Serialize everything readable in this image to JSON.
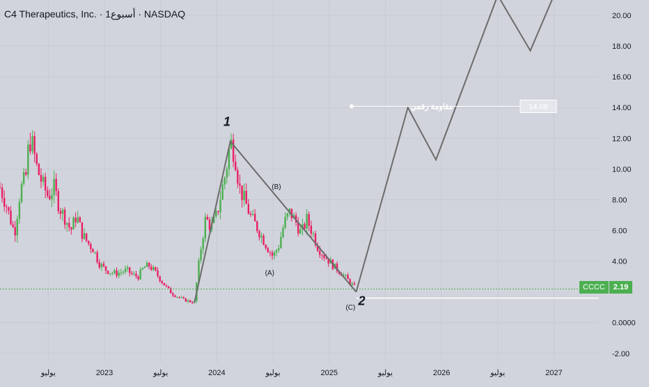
{
  "header": {
    "symbol_title": "C4 Therapeutics, Inc. · 1أسبوع · NASDAQ"
  },
  "price_tag": {
    "symbol": "CCCC",
    "price": "2.19"
  },
  "resistance": {
    "label": "مقاومة رقمي",
    "value": "14.08"
  },
  "wave_labels": {
    "w1": "1",
    "w2": "2",
    "a": "(A)",
    "b": "(B)",
    "c": "(C)"
  },
  "colors": {
    "background": "#d1d4dc",
    "up_candle": "#4caf50",
    "down_candle": "#e91e63",
    "wave_line": "#6b6b6b",
    "resistance_line": "#ffffff",
    "price_badge": "#4caf50"
  },
  "chart_data": {
    "type": "candlestick",
    "y_axis": {
      "ticks": [
        "20.00",
        "18.00",
        "16.00",
        "14.00",
        "12.00",
        "10.00",
        "8.00",
        "6.00",
        "4.00",
        "0.0000",
        "-2.00"
      ],
      "tick_values": [
        20,
        18,
        16,
        14,
        12,
        10,
        8,
        6,
        4,
        0,
        -2
      ],
      "range": [
        -2.6,
        21
      ]
    },
    "x_axis": {
      "ticks": [
        "يوليو",
        "2023",
        "يوليو",
        "2024",
        "يوليو",
        "2025",
        "يوليو",
        "2026",
        "يوليو",
        "2027"
      ],
      "tick_dates": [
        2022.5,
        2023.0,
        2023.5,
        2024.0,
        2024.5,
        2025.0,
        2025.5,
        2026.0,
        2026.5,
        2027.0
      ],
      "range": [
        2022.07,
        2027.4
      ]
    },
    "price_path": [
      [
        2022.07,
        8.8
      ],
      [
        2022.12,
        7.8
      ],
      [
        2022.16,
        6.8
      ],
      [
        2022.2,
        5.8
      ],
      [
        2022.25,
        8.6
      ],
      [
        2022.3,
        9.5
      ],
      [
        2022.33,
        12.0
      ],
      [
        2022.36,
        11.5
      ],
      [
        2022.4,
        10.0
      ],
      [
        2022.45,
        9.0
      ],
      [
        2022.5,
        8.2
      ],
      [
        2022.55,
        8.8
      ],
      [
        2022.6,
        7.5
      ],
      [
        2022.65,
        6.8
      ],
      [
        2022.7,
        6.0
      ],
      [
        2022.75,
        7.0
      ],
      [
        2022.8,
        5.8
      ],
      [
        2022.85,
        5.2
      ],
      [
        2022.9,
        4.8
      ],
      [
        2022.95,
        3.9
      ],
      [
        2023.0,
        3.5
      ],
      [
        2023.05,
        3.3
      ],
      [
        2023.1,
        3.2
      ],
      [
        2023.15,
        3.3
      ],
      [
        2023.2,
        3.4
      ],
      [
        2023.25,
        3.1
      ],
      [
        2023.3,
        3.0
      ],
      [
        2023.35,
        3.6
      ],
      [
        2023.4,
        3.7
      ],
      [
        2023.45,
        3.3
      ],
      [
        2023.5,
        2.8
      ],
      [
        2023.55,
        2.3
      ],
      [
        2023.6,
        1.9
      ],
      [
        2023.65,
        1.7
      ],
      [
        2023.7,
        1.5
      ],
      [
        2023.75,
        1.4
      ],
      [
        2023.8,
        1.3
      ],
      [
        2023.85,
        4.5
      ],
      [
        2023.9,
        6.8
      ],
      [
        2023.95,
        6.2
      ],
      [
        2024.0,
        7.0
      ],
      [
        2024.04,
        8.5
      ],
      [
        2024.08,
        9.8
      ],
      [
        2024.12,
        11.8
      ],
      [
        2024.16,
        11.0
      ],
      [
        2024.2,
        8.8
      ],
      [
        2024.25,
        7.9
      ],
      [
        2024.3,
        6.9
      ],
      [
        2024.35,
        6.3
      ],
      [
        2024.4,
        5.6
      ],
      [
        2024.45,
        4.9
      ],
      [
        2024.5,
        4.3
      ],
      [
        2024.55,
        5.0
      ],
      [
        2024.6,
        6.5
      ],
      [
        2024.65,
        7.2
      ],
      [
        2024.7,
        6.6
      ],
      [
        2024.75,
        5.8
      ],
      [
        2024.8,
        6.7
      ],
      [
        2024.85,
        5.9
      ],
      [
        2024.9,
        4.9
      ],
      [
        2024.95,
        4.4
      ],
      [
        2025.0,
        4.0
      ],
      [
        2025.05,
        3.6
      ],
      [
        2025.1,
        3.3
      ],
      [
        2025.15,
        2.9
      ],
      [
        2025.2,
        2.5
      ],
      [
        2025.24,
        2.19
      ]
    ],
    "last_price": 2.19
  }
}
